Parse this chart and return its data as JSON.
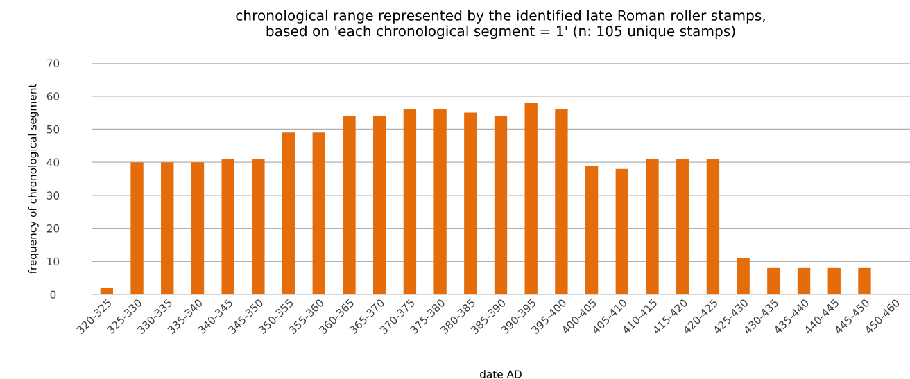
{
  "chart_data": {
    "type": "bar",
    "title": "chronological range represented by the identified late Roman roller stamps,\nbased on 'each chronological segment = 1' (n: 105 unique stamps)",
    "xlabel": "date AD",
    "ylabel": "frequency of chronological segment",
    "categories": [
      "320-325",
      "325-330",
      "330-335",
      "335-340",
      "340-345",
      "345-350",
      "350-355",
      "355-360",
      "360-365",
      "365-370",
      "370-375",
      "375-380",
      "380-385",
      "385-390",
      "390-395",
      "395-400",
      "400-405",
      "405-410",
      "410-415",
      "415-420",
      "420-425",
      "425-430",
      "430-435",
      "435-440",
      "440-445",
      "445-450",
      "450-460"
    ],
    "values": [
      2,
      40,
      40,
      40,
      41,
      41,
      49,
      49,
      54,
      54,
      56,
      56,
      55,
      54,
      58,
      56,
      39,
      38,
      41,
      41,
      41,
      11,
      8,
      8,
      8,
      8,
      0
    ],
    "color": "#e46c0a",
    "ylim": [
      0,
      70
    ],
    "yticks": [
      0,
      10,
      20,
      30,
      40,
      50,
      60,
      70
    ],
    "grid": "y",
    "legend": false
  }
}
